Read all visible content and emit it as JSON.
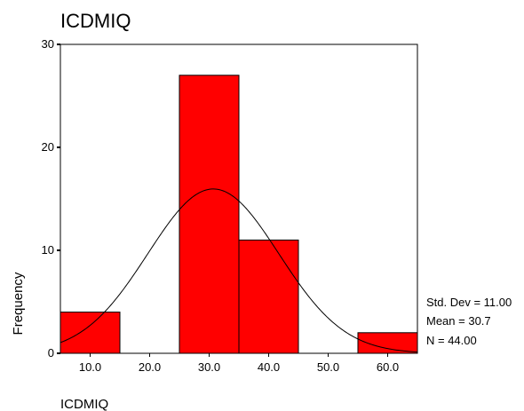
{
  "chart_data": {
    "type": "bar",
    "title": "ICDMIQ",
    "xlabel": "ICDMIQ",
    "ylabel": "Frequency",
    "xlim": [
      5,
      65
    ],
    "ylim": [
      0,
      30
    ],
    "x_ticks": [
      "10.0",
      "20.0",
      "30.0",
      "40.0",
      "50.0",
      "60.0"
    ],
    "y_ticks": [
      "0",
      "10",
      "20",
      "30"
    ],
    "bins": [
      {
        "from": 5,
        "to": 15,
        "count": 4
      },
      {
        "from": 15,
        "to": 25,
        "count": 0
      },
      {
        "from": 25,
        "to": 35,
        "count": 27
      },
      {
        "from": 35,
        "to": 45,
        "count": 11
      },
      {
        "from": 45,
        "to": 55,
        "count": 0
      },
      {
        "from": 55,
        "to": 65,
        "count": 2
      }
    ],
    "normal_curve": {
      "mean": 30.7,
      "std": 11.0,
      "n": 44,
      "bin_width": 10
    },
    "stats": [
      "Std. Dev = 11.00",
      "Mean = 30.7",
      "N = 44.00"
    ],
    "bar_color": "#ff0000",
    "grid": false,
    "legend_position": "right"
  }
}
